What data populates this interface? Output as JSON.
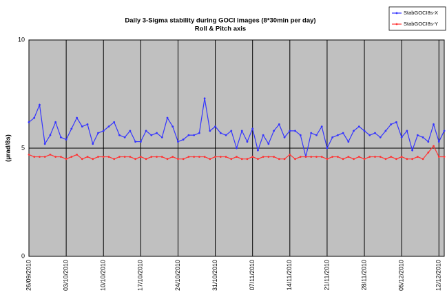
{
  "chart_data": {
    "type": "line",
    "title": "Daily 3-Sigma stability during GOCI images (8*30min per day)",
    "subtitle": "Roll & Pitch axis",
    "y_label": "(µrad/8s)",
    "categories": [
      "26/09/2010",
      null,
      null,
      null,
      null,
      null,
      null,
      "03/10/2010",
      null,
      null,
      null,
      null,
      null,
      null,
      "10/10/2010",
      null,
      null,
      null,
      null,
      null,
      null,
      "17/10/2010",
      null,
      null,
      null,
      null,
      null,
      null,
      "24/10/2010",
      null,
      null,
      null,
      null,
      null,
      null,
      "31/10/2010",
      null,
      null,
      null,
      null,
      null,
      null,
      "07/11/2010",
      null,
      null,
      null,
      null,
      null,
      null,
      "14/11/2010",
      null,
      null,
      null,
      null,
      null,
      null,
      "21/11/2010",
      null,
      null,
      null,
      null,
      null,
      null,
      "28/11/2010",
      null,
      null,
      null,
      null,
      null,
      null,
      "05/12/2010",
      null,
      null,
      null,
      null,
      null,
      null,
      "12/12/2010",
      null
    ],
    "series": [
      {
        "name": "StabGOCI8s-X",
        "color": "#3333ff",
        "values": [
          6.2,
          6.4,
          7.0,
          5.2,
          5.6,
          6.2,
          5.5,
          5.4,
          5.9,
          6.4,
          6.0,
          6.1,
          5.2,
          5.7,
          5.8,
          6.0,
          6.2,
          5.6,
          5.5,
          5.8,
          5.3,
          5.3,
          5.8,
          5.6,
          5.7,
          5.5,
          6.4,
          6.0,
          5.3,
          5.4,
          5.6,
          5.6,
          5.7,
          7.3,
          5.8,
          6.0,
          5.7,
          5.6,
          5.8,
          5.0,
          5.8,
          5.3,
          5.9,
          4.9,
          5.6,
          5.2,
          5.8,
          6.1,
          5.5,
          5.8,
          5.8,
          5.6,
          4.6,
          5.7,
          5.6,
          6.0,
          5.0,
          5.5,
          5.6,
          5.7,
          5.3,
          5.8,
          6.0,
          5.8,
          5.6,
          5.7,
          5.5,
          5.8,
          6.1,
          6.2,
          5.5,
          5.8,
          4.9,
          5.6,
          5.5,
          5.3,
          6.1,
          5.3,
          5.8
        ]
      },
      {
        "name": "StabGOCI8s-Y",
        "color": "#ff3333",
        "values": [
          4.7,
          4.6,
          4.6,
          4.6,
          4.7,
          4.6,
          4.6,
          4.5,
          4.6,
          4.7,
          4.5,
          4.6,
          4.5,
          4.6,
          4.6,
          4.6,
          4.5,
          4.6,
          4.6,
          4.6,
          4.5,
          4.6,
          4.5,
          4.6,
          4.6,
          4.6,
          4.5,
          4.6,
          4.5,
          4.5,
          4.6,
          4.6,
          4.6,
          4.6,
          4.5,
          4.6,
          4.6,
          4.6,
          4.5,
          4.6,
          4.5,
          4.5,
          4.6,
          4.5,
          4.6,
          4.6,
          4.6,
          4.5,
          4.5,
          4.7,
          4.5,
          4.6,
          4.6,
          4.6,
          4.6,
          4.6,
          4.5,
          4.6,
          4.6,
          4.5,
          4.6,
          4.5,
          4.6,
          4.5,
          4.6,
          4.6,
          4.6,
          4.5,
          4.6,
          4.5,
          4.6,
          4.5,
          4.5,
          4.6,
          4.5,
          4.8,
          5.1,
          4.6,
          4.6
        ]
      }
    ],
    "ylim": [
      0,
      10
    ],
    "yticks": [
      0,
      5,
      10
    ],
    "grid": true,
    "legend": "top-right"
  }
}
